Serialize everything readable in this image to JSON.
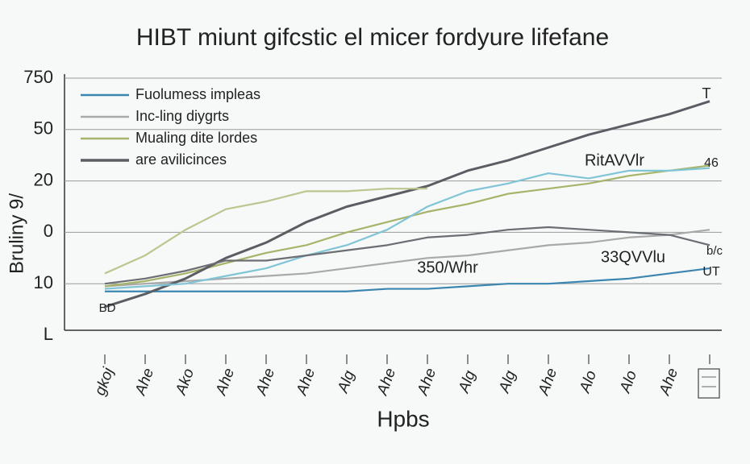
{
  "chart_data": {
    "type": "line",
    "title": "HIBT miunt gifcstic el micer fordyure lifefane",
    "y_label": "Bruliny 9/",
    "x_label": "Hpbs",
    "ytick_labels": [
      "750",
      "50",
      "20",
      "0",
      "10",
      "L"
    ],
    "ylim": [
      0,
      100
    ],
    "categories": [
      "gkoj",
      "Ahe",
      "Ako",
      "Ahe",
      "Ahe",
      "Ahe",
      "Alg",
      "Ahe",
      "Ahe",
      "Alg",
      "Alg",
      "Ahe",
      "Alo",
      "Alo",
      "Ahe",
      null
    ],
    "legend": "upper left",
    "grid": true,
    "series": [
      {
        "name": "Fuolumess impleas",
        "color": "#3b86b0",
        "values": [
          17,
          17,
          17,
          17,
          17,
          17,
          17,
          18,
          18,
          19,
          20,
          20,
          21,
          22,
          24,
          26
        ]
      },
      {
        "name": "Inc-ling diygrts",
        "color": "#a9a9a9",
        "values": [
          19,
          20,
          21,
          22,
          23,
          24,
          26,
          28,
          30,
          31,
          33,
          35,
          36,
          38,
          39,
          41
        ]
      },
      {
        "name": "Mualing dite lordes",
        "color": "#a6b46a",
        "values": [
          19,
          21,
          24,
          28,
          32,
          35,
          40,
          44,
          48,
          51,
          55,
          57,
          59,
          62,
          64,
          66
        ]
      },
      {
        "name": "are avilicinces",
        "color": "#5a5d63",
        "values": [
          11,
          16,
          22,
          30,
          36,
          44,
          50,
          54,
          58,
          64,
          68,
          73,
          78,
          82,
          86,
          91
        ]
      },
      {
        "color": "#80c5d6",
        "values": [
          18,
          19,
          20,
          23,
          26,
          31,
          35,
          41,
          50,
          56,
          59,
          63,
          61,
          64,
          64,
          65
        ]
      },
      {
        "color": "#bcc68f",
        "values": [
          24,
          31,
          41,
          49,
          52,
          56,
          56,
          57,
          57,
          null,
          null,
          null,
          null,
          null,
          null,
          null
        ]
      },
      {
        "color": "#6b6e73",
        "values": [
          20,
          22,
          25,
          29,
          29,
          31,
          33,
          35,
          38,
          39,
          41,
          42,
          41,
          40,
          39,
          35
        ]
      }
    ],
    "annotations": [
      "T",
      "46",
      "RitAVVlr",
      "350/Whr",
      "33QVVlu",
      "b/c",
      "UT",
      "BD"
    ]
  }
}
